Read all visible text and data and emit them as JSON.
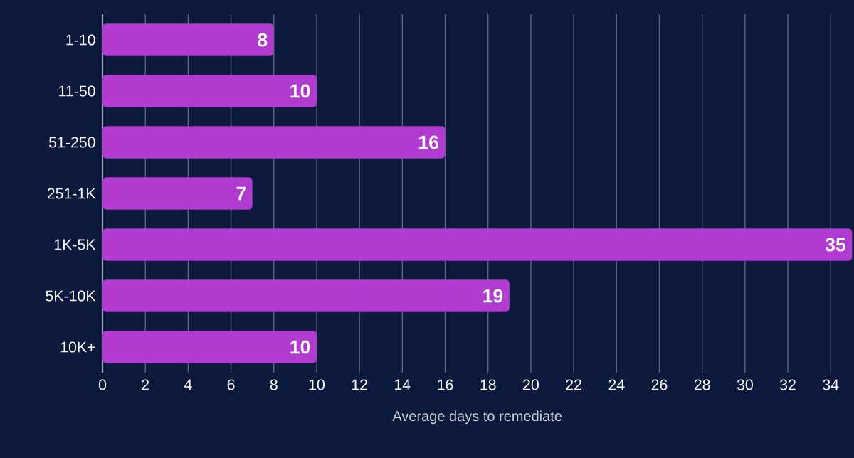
{
  "chart_data": {
    "type": "bar",
    "orientation": "horizontal",
    "xlabel": "Average days to remediate",
    "categories": [
      "1-10",
      "11-50",
      "51-250",
      "251-1K",
      "1K-5K",
      "5K-10K",
      "10K+"
    ],
    "values": [
      8,
      10,
      16,
      7,
      35,
      19,
      10
    ],
    "color": "#b13ad0",
    "xlim": [
      0,
      35
    ],
    "xticks": [
      0,
      2,
      4,
      6,
      8,
      10,
      12,
      14,
      16,
      18,
      20,
      22,
      24,
      26,
      28,
      30,
      32,
      34
    ],
    "grid": "x",
    "data_labels": true
  }
}
